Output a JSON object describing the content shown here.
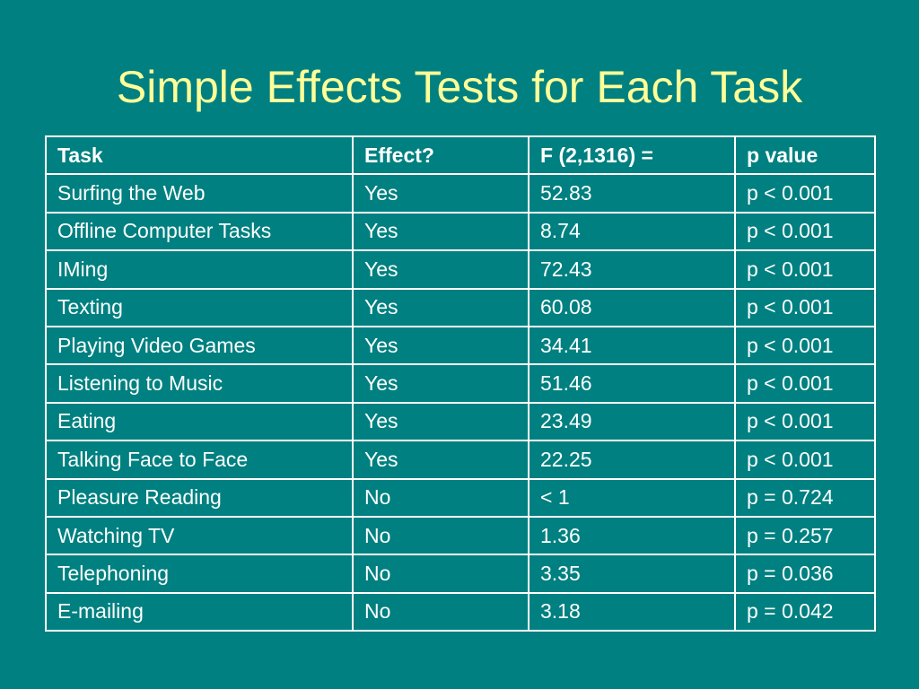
{
  "slide": {
    "title": "Simple Effects Tests for Each Task"
  },
  "table": {
    "headers": [
      "Task",
      "Effect?",
      "F (2,1316) =",
      "p value"
    ],
    "rows": [
      [
        "Surfing the Web",
        "Yes",
        "52.83",
        "p < 0.001"
      ],
      [
        "Offline Computer Tasks",
        "Yes",
        "8.74",
        "p < 0.001"
      ],
      [
        "IMing",
        "Yes",
        "72.43",
        "p < 0.001"
      ],
      [
        "Texting",
        "Yes",
        "60.08",
        "p < 0.001"
      ],
      [
        "Playing Video Games",
        "Yes",
        "34.41",
        "p < 0.001"
      ],
      [
        "Listening to Music",
        "Yes",
        "51.46",
        "p < 0.001"
      ],
      [
        "Eating",
        "Yes",
        "23.49",
        "p < 0.001"
      ],
      [
        "Talking Face to Face",
        "Yes",
        "22.25",
        "p < 0.001"
      ],
      [
        "Pleasure Reading",
        "No",
        "< 1",
        "p = 0.724"
      ],
      [
        "Watching TV",
        "No",
        "1.36",
        "p = 0.257"
      ],
      [
        "Telephoning",
        "No",
        "3.35",
        "p = 0.036"
      ],
      [
        "E-mailing",
        "No",
        "3.18",
        "p = 0.042"
      ]
    ]
  },
  "colors": {
    "background": "#008080",
    "title": "#FFFF99",
    "table_text": "#FFFFFF",
    "table_border": "#FFFFFF"
  }
}
